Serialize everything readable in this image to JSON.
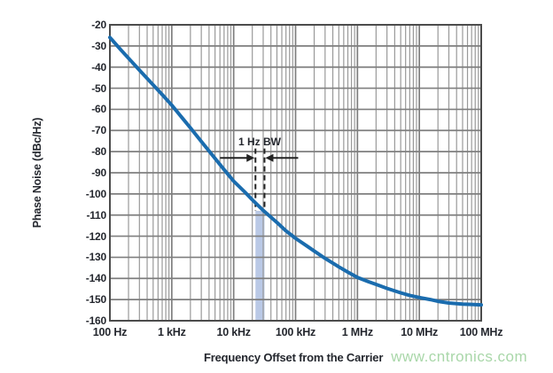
{
  "watermark": {
    "text": "www.cntronics.com",
    "color": "#a9d7a9"
  },
  "chart_data": {
    "type": "line",
    "xlabel": "Frequency Offset from the Carrier",
    "ylabel": "Phase Noise (dBc/Hz)",
    "x_scale": "log",
    "x_min_hz": 100,
    "x_max_hz": 100000000,
    "x_tick_hz": [
      100,
      1000,
      10000,
      100000,
      1000000,
      10000000,
      100000000
    ],
    "x_tick_labels": [
      "100 Hz",
      "1 kHz",
      "10 kHz",
      "100 kHz",
      "1 MHz",
      "10 MHz",
      "100 MHz"
    ],
    "ylim": [
      -160,
      -20
    ],
    "y_tick_step": 10,
    "y_tick_values": [
      -20,
      -30,
      -40,
      -50,
      -60,
      -70,
      -80,
      -90,
      -100,
      -110,
      -120,
      -130,
      -140,
      -150,
      -160
    ],
    "y_tick_labels": [
      "-20",
      "-30",
      "-40",
      "-50",
      "-60",
      "-70",
      "-80",
      "-90",
      "-100",
      "-110",
      "-120",
      "-130",
      "-140",
      "-150",
      "-160"
    ],
    "grid": {
      "show_minor_x": true,
      "major_color": "#7f7f7f",
      "minor_color": "#999999",
      "frame_color": "#4c4c4c"
    },
    "text_color": "#24272e",
    "series": [
      {
        "name": "phase-noise-curve",
        "color": "#1a6cae",
        "width": 4,
        "points": [
          [
            100,
            -26
          ],
          [
            150,
            -31.8
          ],
          [
            200,
            -35.8
          ],
          [
            300,
            -41.4
          ],
          [
            500,
            -48.4
          ],
          [
            700,
            -53
          ],
          [
            1000,
            -58
          ],
          [
            1500,
            -64.3
          ],
          [
            2000,
            -68.8
          ],
          [
            3000,
            -75.2
          ],
          [
            5000,
            -83.2
          ],
          [
            7000,
            -88.5
          ],
          [
            10000,
            -94
          ],
          [
            15000,
            -99
          ],
          [
            20000,
            -102.8
          ],
          [
            30000,
            -107.8
          ],
          [
            50000,
            -113.5
          ],
          [
            70000,
            -117.5
          ],
          [
            100000,
            -121
          ],
          [
            150000,
            -124.5
          ],
          [
            200000,
            -127
          ],
          [
            300000,
            -130.5
          ],
          [
            500000,
            -134.5
          ],
          [
            700000,
            -137
          ],
          [
            1000000,
            -139.5
          ],
          [
            1500000,
            -141.5
          ],
          [
            2000000,
            -142.8
          ],
          [
            3000000,
            -144.7
          ],
          [
            5000000,
            -146.8
          ],
          [
            7000000,
            -148
          ],
          [
            10000000,
            -149
          ],
          [
            15000000,
            -150
          ],
          [
            20000000,
            -150.8
          ],
          [
            30000000,
            -151.6
          ],
          [
            50000000,
            -152.1
          ],
          [
            70000000,
            -152.3
          ],
          [
            100000000,
            -152.5
          ]
        ]
      }
    ],
    "annotation": {
      "label": "1 Hz BW",
      "band_hz": [
        22500,
        31500
      ],
      "band_color": "#bac9e6",
      "band_top_dbc": -108,
      "dash_top_dbc": -78.5,
      "arrow_level_dbc": -83,
      "arrow_color": "#232323"
    }
  }
}
